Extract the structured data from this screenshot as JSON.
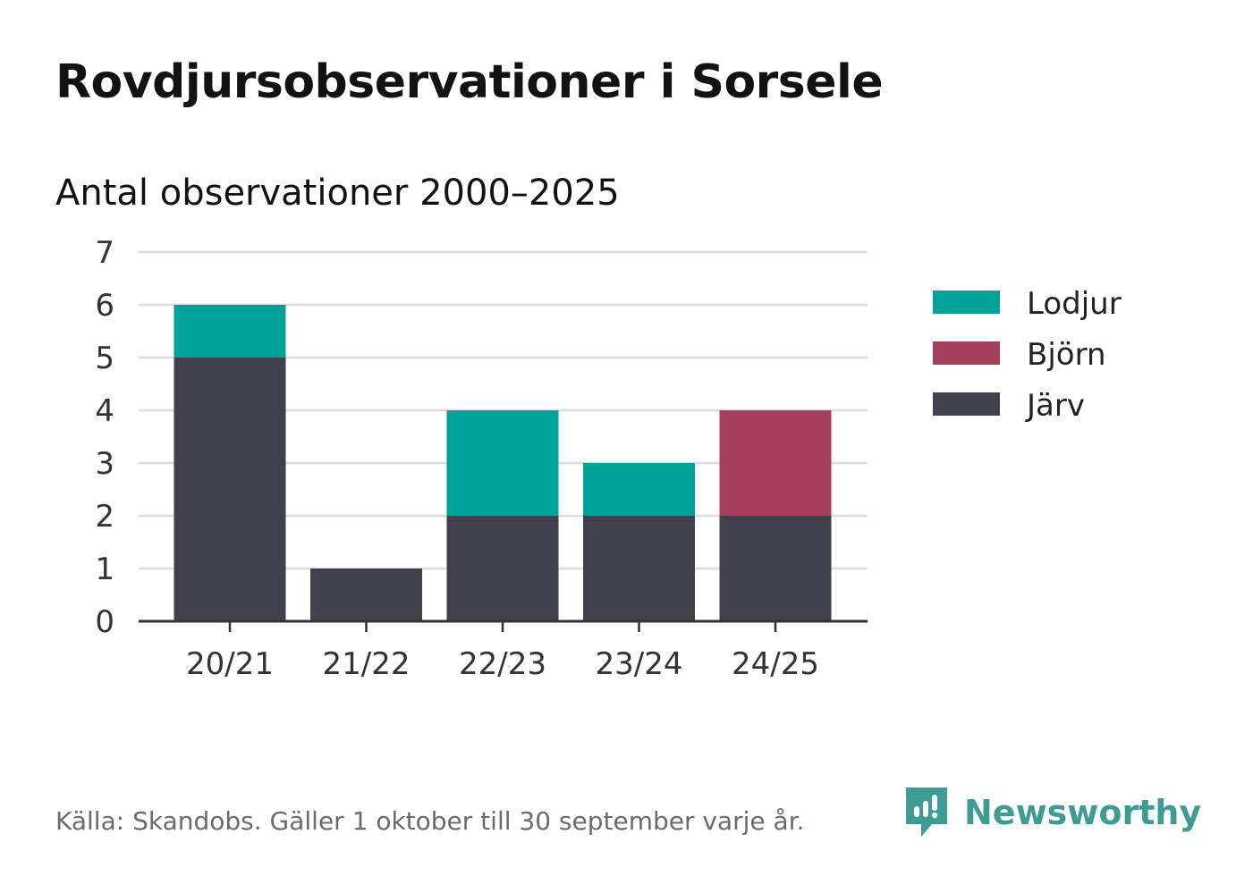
{
  "header": {
    "title": "Rovdjursobservationer i Sorsele",
    "subtitle": "Antal observationer 2000–2025"
  },
  "chart_data": {
    "type": "bar",
    "stacked": true,
    "categories": [
      "20/21",
      "21/22",
      "22/23",
      "23/24",
      "24/25"
    ],
    "series": [
      {
        "name": "Järv",
        "color": "#41404d",
        "values": [
          5,
          1,
          2,
          2,
          2
        ]
      },
      {
        "name": "Björn",
        "color": "#a5405c",
        "values": [
          0,
          0,
          0,
          0,
          2
        ]
      },
      {
        "name": "Lodjur",
        "color": "#00a39a",
        "values": [
          1,
          0,
          2,
          1,
          0
        ]
      }
    ],
    "legend_order": [
      "Lodjur",
      "Björn",
      "Järv"
    ],
    "ylim": [
      0,
      7
    ],
    "yticks": [
      0,
      1,
      2,
      3,
      4,
      5,
      6,
      7
    ],
    "grid": true,
    "legend_position": "right"
  },
  "footer": {
    "source": "Källa: Skandobs. Gäller 1 oktober till 30 september varje år.",
    "brand": "Newsworthy",
    "brand_color": "#3f9c94"
  }
}
